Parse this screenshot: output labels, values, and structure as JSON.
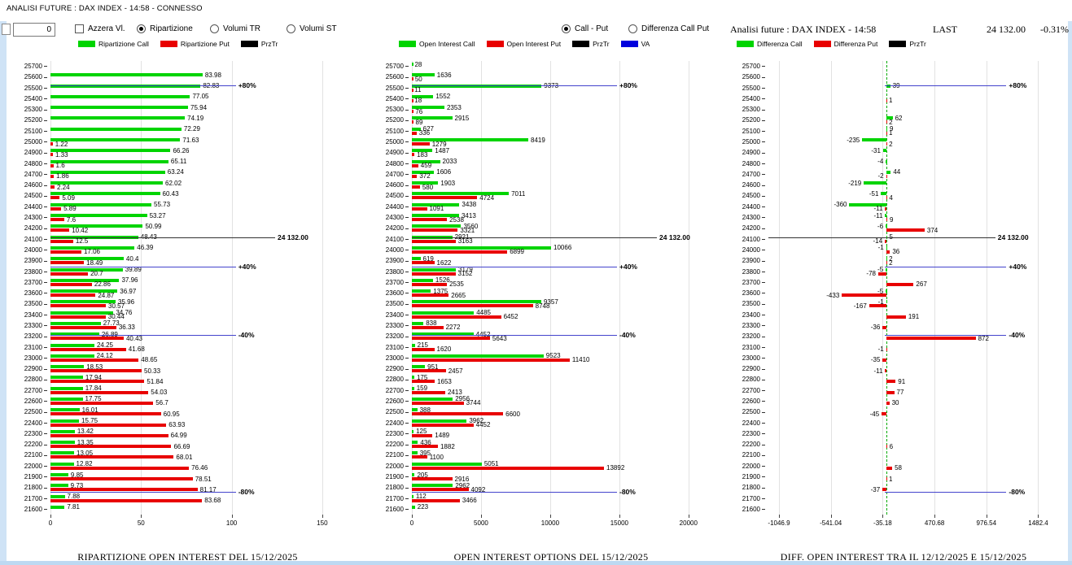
{
  "window_title": "ANALISI FUTURE : DAX INDEX - 14:58 - CONNESSO",
  "controls": {
    "counter_value": "0",
    "azzera_label": "Azzera Vl.",
    "radio_ripartizione": "Ripartizione",
    "radio_volumi_tr": "Volumi TR",
    "radio_volumi_st": "Volumi ST",
    "radio_call_put": "Call - Put",
    "radio_diff_call_put": "Differenza Call Put",
    "right_header": "Analisi future : DAX INDEX - 14:58",
    "last_label": "LAST",
    "last_value": "24 132.00",
    "change_value": "-0.31%"
  },
  "colors": {
    "call": "#00d400",
    "put": "#e80000",
    "przt": "#000000",
    "va": "#0000dd",
    "level_line": "#4444cc",
    "price_line": "#333333"
  },
  "chart_data": [
    {
      "type": "bar",
      "title": "RIPARTIZIONE OPEN INTEREST DEL 15/12/2025",
      "legend": [
        {
          "label": "Ripartizione Call",
          "color": "#00d400"
        },
        {
          "label": "Ripartizione Put",
          "color": "#e80000"
        },
        {
          "label": "PrzTr",
          "color": "#000000"
        }
      ],
      "x": {
        "min": 0,
        "max": 155,
        "ticks": [
          {
            "v": 0,
            "t": "0"
          },
          {
            "v": 50,
            "t": "50"
          },
          {
            "v": 100,
            "t": "100"
          },
          {
            "v": 150,
            "t": "150"
          }
        ]
      },
      "annotations": [
        {
          "label": "+80%",
          "pos": 2.25,
          "kind": "blue"
        },
        {
          "label": "24 132.00",
          "pos": 16.3,
          "kind": "black"
        },
        {
          "label": "+40%",
          "pos": 19.0,
          "kind": "blue"
        },
        {
          "label": "-40%",
          "pos": 25.35,
          "kind": "blue"
        },
        {
          "label": "-80%",
          "pos": 39.85,
          "kind": "blue"
        }
      ],
      "rows": [
        {
          "s": 25700
        },
        {
          "s": 25600,
          "c": 83.98
        },
        {
          "s": 25500,
          "c": 82.83
        },
        {
          "s": 25400,
          "c": 77.05
        },
        {
          "s": 25300,
          "c": 75.94
        },
        {
          "s": 25200,
          "c": 74.19
        },
        {
          "s": 25100,
          "c": 72.29
        },
        {
          "s": 25000,
          "c": 71.63,
          "p": 1.22
        },
        {
          "s": 24900,
          "c": 66.26,
          "p": 1.33
        },
        {
          "s": 24800,
          "c": 65.11,
          "p": 1.6
        },
        {
          "s": 24700,
          "c": 63.24,
          "p": 1.86
        },
        {
          "s": 24600,
          "c": 62.02,
          "p": 2.24
        },
        {
          "s": 24500,
          "c": 60.43,
          "p": 5.09
        },
        {
          "s": 24400,
          "c": 55.73,
          "p": 5.89
        },
        {
          "s": 24300,
          "c": 53.27,
          "p": 7.6
        },
        {
          "s": 24200,
          "c": 50.99,
          "p": 10.42
        },
        {
          "s": 24100,
          "c": 48.43,
          "p": 12.5
        },
        {
          "s": 24000,
          "c": 46.39,
          "p": 17.06
        },
        {
          "s": 23900,
          "c": 40.4,
          "p": 18.49
        },
        {
          "s": 23800,
          "c": 39.89,
          "p": 20.7
        },
        {
          "s": 23700,
          "c": 37.96,
          "p": 22.86
        },
        {
          "s": 23600,
          "c": 36.97,
          "p": 24.87
        },
        {
          "s": 23500,
          "c": 35.96,
          "p": 30.57
        },
        {
          "s": 23400,
          "c": 34.76,
          "p": 30.44
        },
        {
          "s": 23300,
          "c": 27.73,
          "p": 36.33
        },
        {
          "s": 23200,
          "c": 26.89,
          "p": 40.43
        },
        {
          "s": 23100,
          "c": 24.25,
          "p": 41.68
        },
        {
          "s": 23000,
          "c": 24.12,
          "p": 48.65
        },
        {
          "s": 22900,
          "c": 18.53,
          "p": 50.33
        },
        {
          "s": 22800,
          "c": 17.94,
          "p": 51.84
        },
        {
          "s": 22700,
          "c": 17.84,
          "p": 54.03
        },
        {
          "s": 22600,
          "c": 17.75,
          "p": 56.7
        },
        {
          "s": 22500,
          "c": 16.01,
          "p": 60.95
        },
        {
          "s": 22400,
          "c": 15.75,
          "p": 63.93
        },
        {
          "s": 22300,
          "c": 13.42,
          "p": 64.99
        },
        {
          "s": 22200,
          "c": 13.35,
          "p": 66.69
        },
        {
          "s": 22100,
          "c": 13.05,
          "p": 68.01
        },
        {
          "s": 22000,
          "c": 12.82,
          "p": 76.46
        },
        {
          "s": 21900,
          "c": 9.85,
          "p": 78.51
        },
        {
          "s": 21800,
          "c": 9.73,
          "p": 81.17
        },
        {
          "s": 21700,
          "c": 7.88,
          "p": 83.68
        },
        {
          "s": 21600,
          "c": 7.81
        }
      ]
    },
    {
      "type": "bar",
      "title": "OPEN INTEREST OPTIONS DEL 15/12/2025",
      "legend": [
        {
          "label": "Open Interest Call",
          "color": "#00d400"
        },
        {
          "label": "Open Interest Put",
          "color": "#e80000"
        },
        {
          "label": "PrzTr",
          "color": "#000000"
        },
        {
          "label": "VA",
          "color": "#0000dd"
        }
      ],
      "x": {
        "min": 0,
        "max": 20600,
        "ticks": [
          {
            "v": 0,
            "t": "0"
          },
          {
            "v": 5000,
            "t": "5000"
          },
          {
            "v": 10000,
            "t": "10000"
          },
          {
            "v": 15000,
            "t": "15000"
          },
          {
            "v": 20000,
            "t": "20000"
          }
        ]
      },
      "annotations": [
        {
          "label": "+80%",
          "pos": 2.25,
          "kind": "blue"
        },
        {
          "label": "24 132.00",
          "pos": 16.3,
          "kind": "black"
        },
        {
          "label": "+40%",
          "pos": 19.0,
          "kind": "blue"
        },
        {
          "label": "-40%",
          "pos": 25.35,
          "kind": "blue"
        },
        {
          "label": "-80%",
          "pos": 39.85,
          "kind": "blue"
        }
      ],
      "rows": [
        {
          "s": 25700,
          "c": 28
        },
        {
          "s": 25600,
          "c": 1636,
          "p": 50
        },
        {
          "s": 25500,
          "c": 9373,
          "p": 11
        },
        {
          "s": 25400,
          "c": 1552,
          "p": 18
        },
        {
          "s": 25300,
          "c": 2353,
          "p": 76
        },
        {
          "s": 25200,
          "c": 2915,
          "p": 89
        },
        {
          "s": 25100,
          "c": 627,
          "p": 336
        },
        {
          "s": 25000,
          "c": 8419,
          "p": 1279
        },
        {
          "s": 24900,
          "c": 1487,
          "p": 183
        },
        {
          "s": 24800,
          "c": 2033,
          "p": 459
        },
        {
          "s": 24700,
          "c": 1606,
          "p": 372
        },
        {
          "s": 24600,
          "c": 1903,
          "p": 580
        },
        {
          "s": 24500,
          "c": 7011,
          "p": 4724
        },
        {
          "s": 24400,
          "c": 3438,
          "p": 1091
        },
        {
          "s": 24300,
          "c": 3413,
          "p": 2538
        },
        {
          "s": 24200,
          "c": 3560,
          "p": 3321
        },
        {
          "s": 24100,
          "c": 2921,
          "p": 3163
        },
        {
          "s": 24000,
          "c": 10066,
          "p": 6899
        },
        {
          "s": 23900,
          "c": 619,
          "p": 1622
        },
        {
          "s": 23800,
          "c": 3179,
          "p": 3152
        },
        {
          "s": 23700,
          "c": 1526,
          "p": 2535
        },
        {
          "s": 23600,
          "c": 1375,
          "p": 2665
        },
        {
          "s": 23500,
          "c": 9357,
          "p": 8748
        },
        {
          "s": 23400,
          "c": 4485,
          "p": 6452
        },
        {
          "s": 23300,
          "c": 838,
          "p": 2272
        },
        {
          "s": 23200,
          "c": 4452,
          "p": 5643
        },
        {
          "s": 23100,
          "c": 215,
          "p": 1620
        },
        {
          "s": 23000,
          "c": 9523,
          "p": 11410
        },
        {
          "s": 22900,
          "c": 951,
          "p": 2457
        },
        {
          "s": 22800,
          "c": 175,
          "p": 1653
        },
        {
          "s": 22700,
          "c": 159,
          "p": 2413
        },
        {
          "s": 22600,
          "c": 2956,
          "p": 3744
        },
        {
          "s": 22500,
          "c": 388,
          "p": 6600
        },
        {
          "s": 22400,
          "c": 3962,
          "p": 4452
        },
        {
          "s": 22300,
          "c": 125,
          "p": 1489
        },
        {
          "s": 22200,
          "c": 436,
          "p": 1882
        },
        {
          "s": 22100,
          "c": 395,
          "p": 1100
        },
        {
          "s": 22000,
          "c": 5051,
          "p": 13892
        },
        {
          "s": 21900,
          "c": 205,
          "p": 2916
        },
        {
          "s": 21800,
          "c": 2962,
          "p": 4092
        },
        {
          "s": 21700,
          "c": 112,
          "p": 3466
        },
        {
          "s": 21600,
          "c": 223
        }
      ]
    },
    {
      "type": "bar",
      "title": "DIFF. OPEN INTEREST TRA IL 12/12/2025 E 15/12/2025",
      "legend": [
        {
          "label": "Differenza Call",
          "color": "#00d400"
        },
        {
          "label": "Differenza Put",
          "color": "#e80000"
        },
        {
          "label": "PrzTr",
          "color": "#000000"
        }
      ],
      "x": {
        "min": -1150,
        "max": 1550,
        "ticks": [
          {
            "v": -1046.9,
            "t": "-1046.9"
          },
          {
            "v": -541.04,
            "t": "-541.04"
          },
          {
            "v": -35.18,
            "t": "-35.18"
          },
          {
            "v": 470.68,
            "t": "470.68"
          },
          {
            "v": 976.54,
            "t": "976.54"
          },
          {
            "v": 1482.4,
            "t": "1482.4"
          }
        ]
      },
      "annotations": [
        {
          "label": "+80%",
          "pos": 2.25,
          "kind": "blue"
        },
        {
          "label": "24 132.00",
          "pos": 16.3,
          "kind": "black"
        },
        {
          "label": "+40%",
          "pos": 19.0,
          "kind": "blue"
        },
        {
          "label": "-40%",
          "pos": 25.35,
          "kind": "blue"
        },
        {
          "label": "-80%",
          "pos": 39.85,
          "kind": "blue"
        }
      ],
      "rows": [
        {
          "s": 25700
        },
        {
          "s": 25600
        },
        {
          "s": 25500,
          "c": 39
        },
        {
          "s": 25400,
          "p": 1
        },
        {
          "s": 25300
        },
        {
          "s": 25200,
          "c": 62,
          "p": 2
        },
        {
          "s": 25100,
          "c": 9,
          "p": 1
        },
        {
          "s": 25000,
          "c": -235,
          "p": 2
        },
        {
          "s": 24900,
          "c": -31
        },
        {
          "s": 24800,
          "c": -4
        },
        {
          "s": 24700,
          "c": 44,
          "p": -2
        },
        {
          "s": 24600,
          "c": -219
        },
        {
          "s": 24500,
          "c": -51,
          "p": 4
        },
        {
          "s": 24400,
          "c": -360,
          "p": -11
        },
        {
          "s": 24300,
          "c": -11,
          "p": 9
        },
        {
          "s": 24200,
          "c": -6,
          "p": 374
        },
        {
          "s": 24100,
          "c": 5,
          "p": -14
        },
        {
          "s": 24000,
          "c": -1,
          "p": 36
        },
        {
          "s": 23900,
          "c": 2,
          "p": 2
        },
        {
          "s": 23800,
          "c": -5,
          "p": -78
        },
        {
          "s": 23700,
          "p": 267
        },
        {
          "s": 23600,
          "c": -5,
          "p": -433
        },
        {
          "s": 23500,
          "c": -1,
          "p": -167
        },
        {
          "s": 23400,
          "p": 191
        },
        {
          "s": 23300,
          "p": -36
        },
        {
          "s": 23200,
          "p": 872
        },
        {
          "s": 23100,
          "p": -1
        },
        {
          "s": 23000,
          "p": -35
        },
        {
          "s": 22900,
          "p": -11
        },
        {
          "s": 22800,
          "p": 91
        },
        {
          "s": 22700,
          "p": 77
        },
        {
          "s": 22600,
          "p": 30
        },
        {
          "s": 22500,
          "p": -45
        },
        {
          "s": 22400
        },
        {
          "s": 22300
        },
        {
          "s": 22200,
          "p": 6
        },
        {
          "s": 22100
        },
        {
          "s": 22000,
          "p": 58
        },
        {
          "s": 21900,
          "p": 1
        },
        {
          "s": 21800,
          "p": -37
        },
        {
          "s": 21700
        },
        {
          "s": 21600
        }
      ]
    }
  ]
}
